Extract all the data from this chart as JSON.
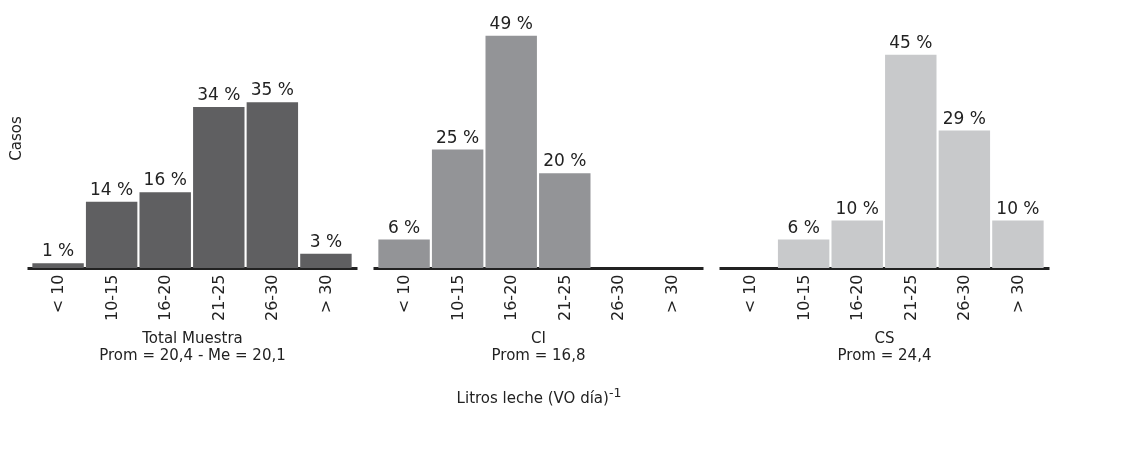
{
  "chart_data": [
    {
      "type": "bar",
      "ylabel": "Casos",
      "xlabel": "Total Muestra",
      "categories": [
        "< 10",
        "10-15",
        "16-20",
        "21-25",
        "26-30",
        "> 30"
      ],
      "values": [
        1,
        14,
        16,
        34,
        35,
        3
      ],
      "value_labels": [
        "1 %",
        "14 %",
        "16 %",
        "34 %",
        "35 %",
        "3 %"
      ],
      "color": "#5f5f61",
      "tick_labels": "x",
      "annotations": [
        "Prom = 20,4 - Me = 20,1"
      ]
    },
    {
      "type": "bar",
      "xlabel": "CI",
      "categories": [
        "< 10",
        "10-15",
        "16-20",
        "21-25",
        "26-30",
        "> 30"
      ],
      "values": [
        6,
        25,
        49,
        20,
        0,
        0
      ],
      "value_labels": [
        "6 %",
        "25 %",
        "49 %",
        "20 %",
        null,
        null
      ],
      "color": "#939497",
      "tick_labels": "x",
      "annotations": [
        "Prom = 16,8",
        "Litros leche (VO día)$^{-1}$"
      ]
    },
    {
      "type": "bar",
      "xlabel": "CS",
      "categories": [
        "< 10",
        "10-15",
        "16-20",
        "21-25",
        "26-30",
        "> 30"
      ],
      "values": [
        0,
        6,
        10,
        45,
        29,
        10
      ],
      "value_labels": [
        null,
        "6 %",
        "10 %",
        "45 %",
        "29 %",
        "10 %"
      ],
      "color": "#c8c9cb",
      "tick_labels": "x",
      "annotations": [
        "Prom = 24,4"
      ]
    }
  ]
}
